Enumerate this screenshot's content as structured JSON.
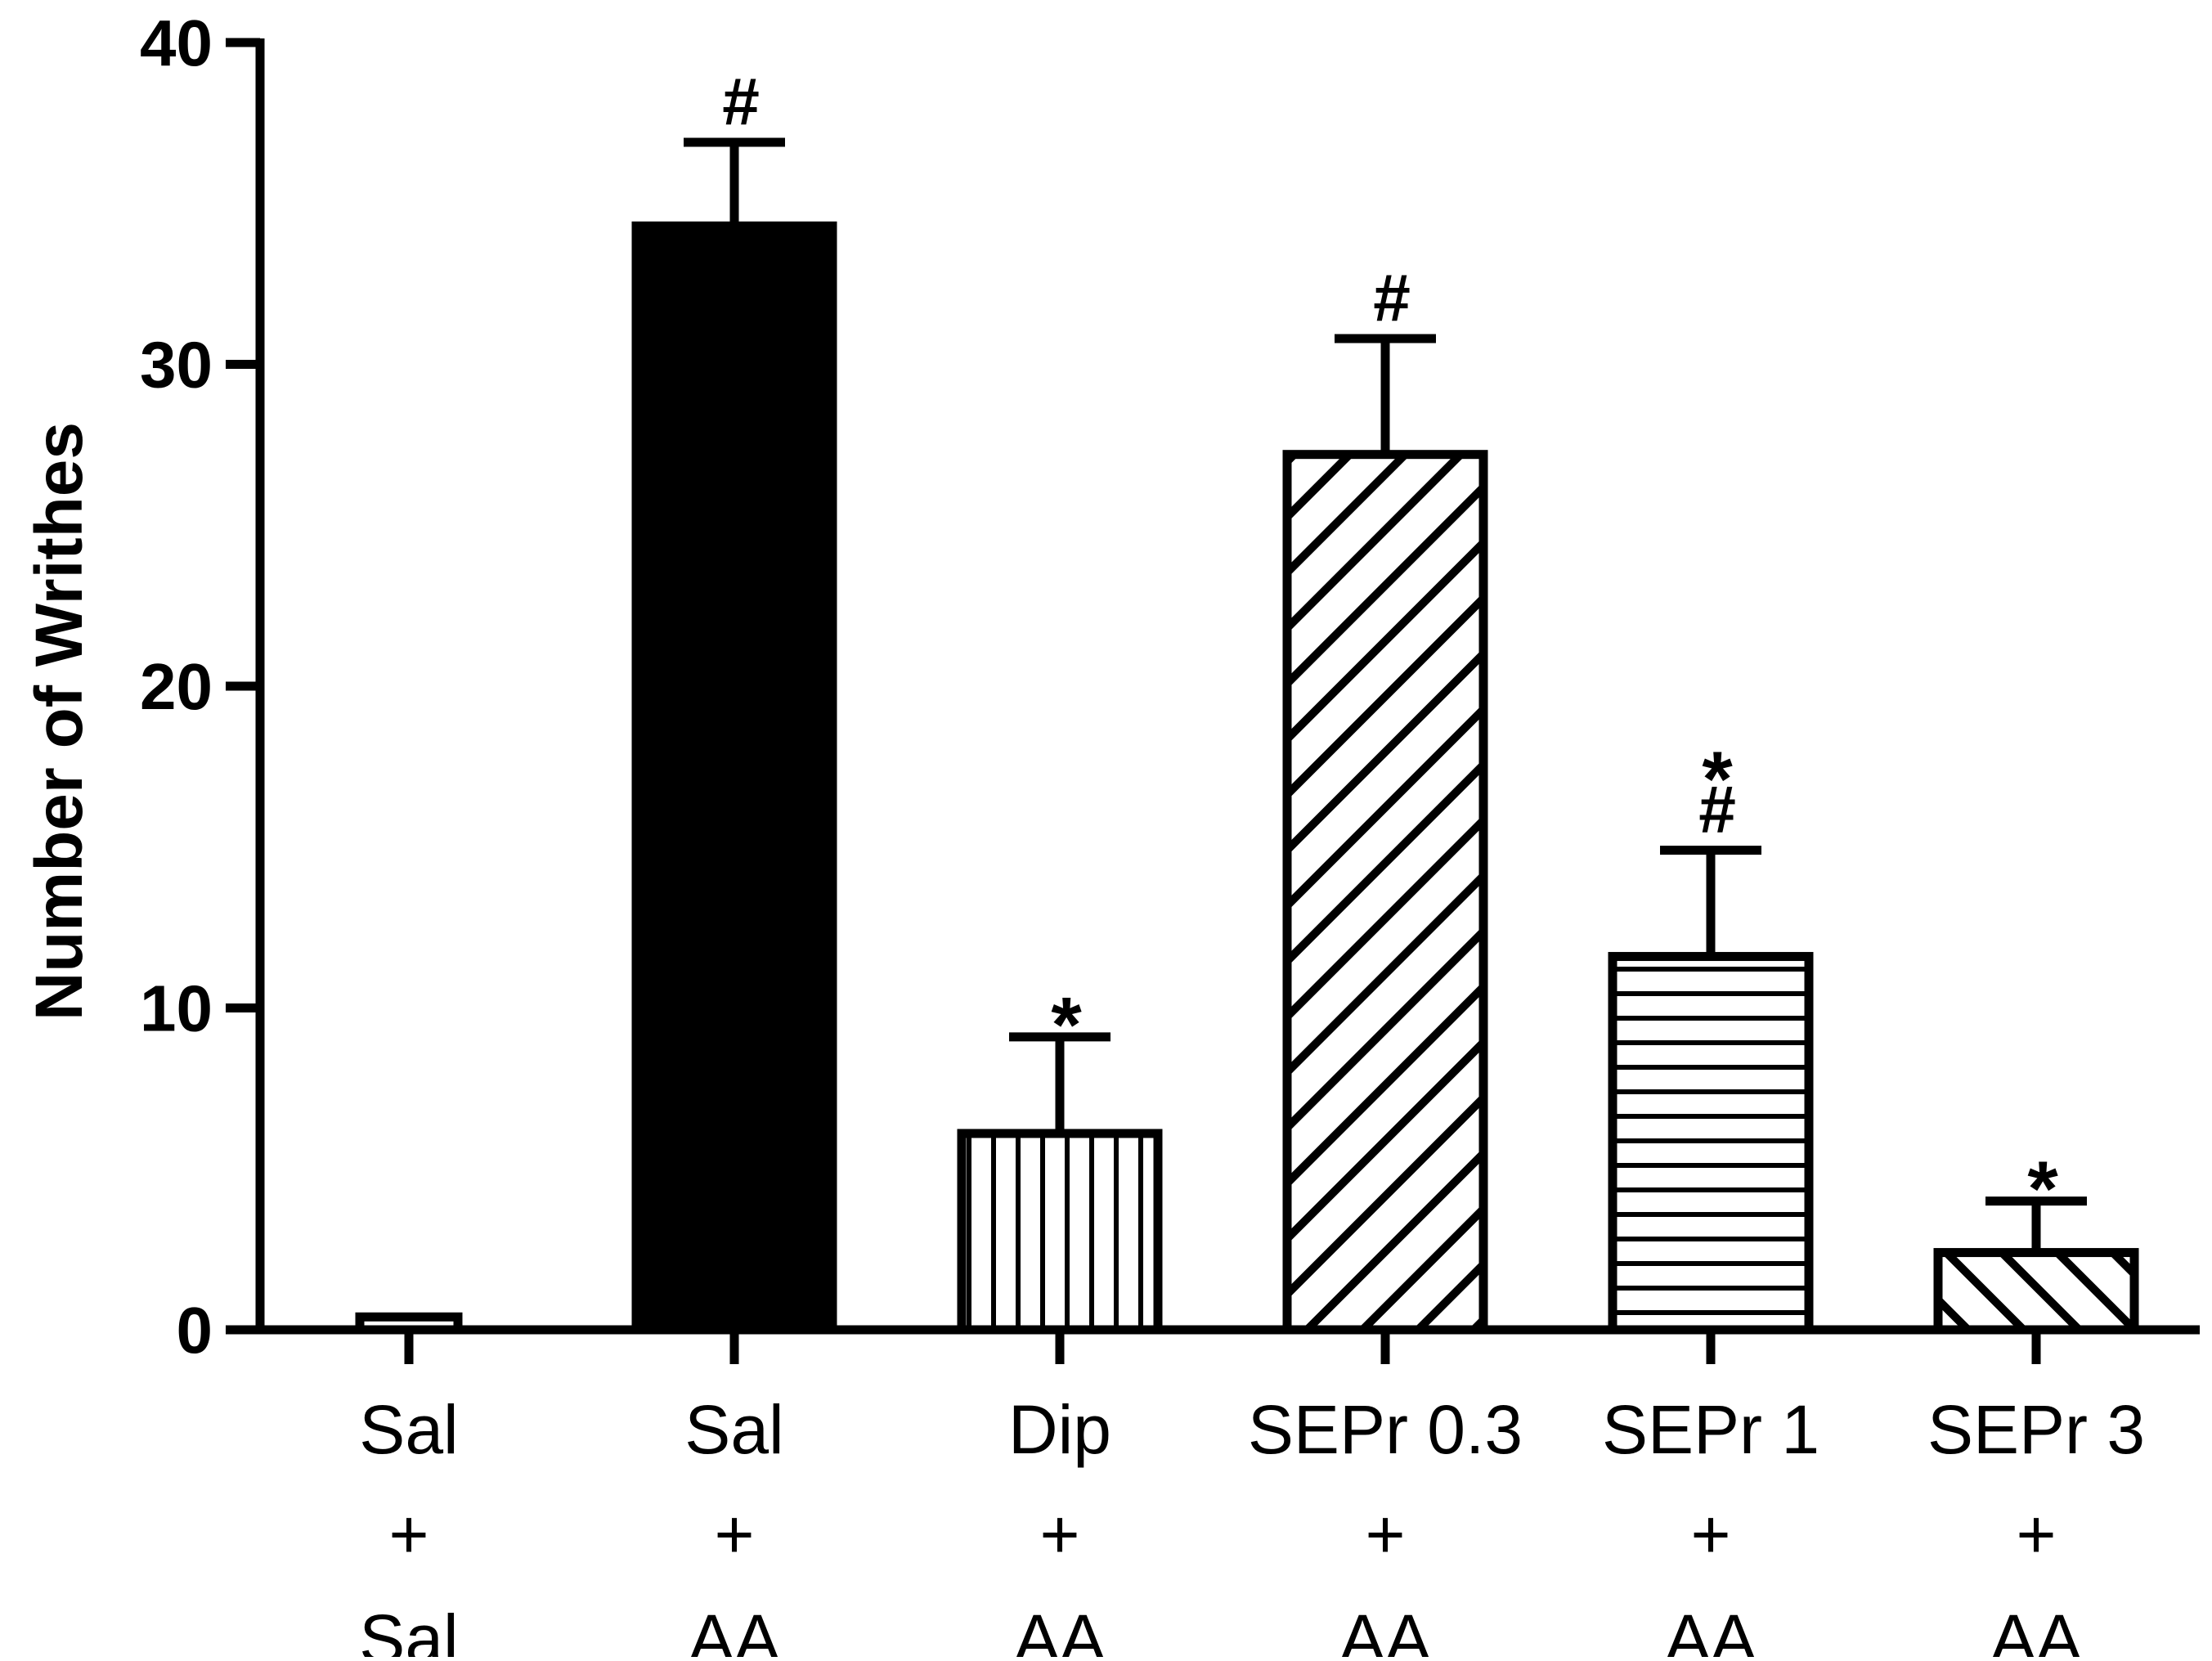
{
  "chart_data": {
    "type": "bar",
    "title": "",
    "xlabel": "",
    "ylabel": "Number of Writhes",
    "ylim": [
      0,
      40
    ],
    "yticks": [
      0,
      10,
      20,
      30,
      40
    ],
    "grid": false,
    "legend": "none",
    "categories": [
      {
        "label": [
          "Sal",
          "+",
          "Sal"
        ],
        "value": 0.4,
        "error": 0,
        "fill": "none",
        "annotations": []
      },
      {
        "label": [
          "Sal",
          "+",
          "AA"
        ],
        "value": 34.3,
        "error": 2.6,
        "fill": "solid",
        "annotations": [
          "#"
        ]
      },
      {
        "label": [
          "Dip",
          "+",
          "AA"
        ],
        "value": 6.1,
        "error": 3.0,
        "fill": "vertical",
        "annotations": [
          "*"
        ]
      },
      {
        "label": [
          "SEPr 0.3",
          "+",
          "AA"
        ],
        "value": 27.2,
        "error": 3.6,
        "fill": "diagonal-down",
        "annotations": [
          "#"
        ]
      },
      {
        "label": [
          "SEPr 1",
          "+",
          "AA"
        ],
        "value": 11.6,
        "error": 3.3,
        "fill": "horizontal",
        "annotations": [
          "#",
          "*"
        ]
      },
      {
        "label": [
          "SEPr 3",
          "+",
          "AA"
        ],
        "value": 2.4,
        "error": 1.6,
        "fill": "diagonal-up",
        "annotations": [
          "*"
        ]
      }
    ],
    "colors": {
      "ink": "#000000",
      "background": "#ffffff"
    }
  }
}
